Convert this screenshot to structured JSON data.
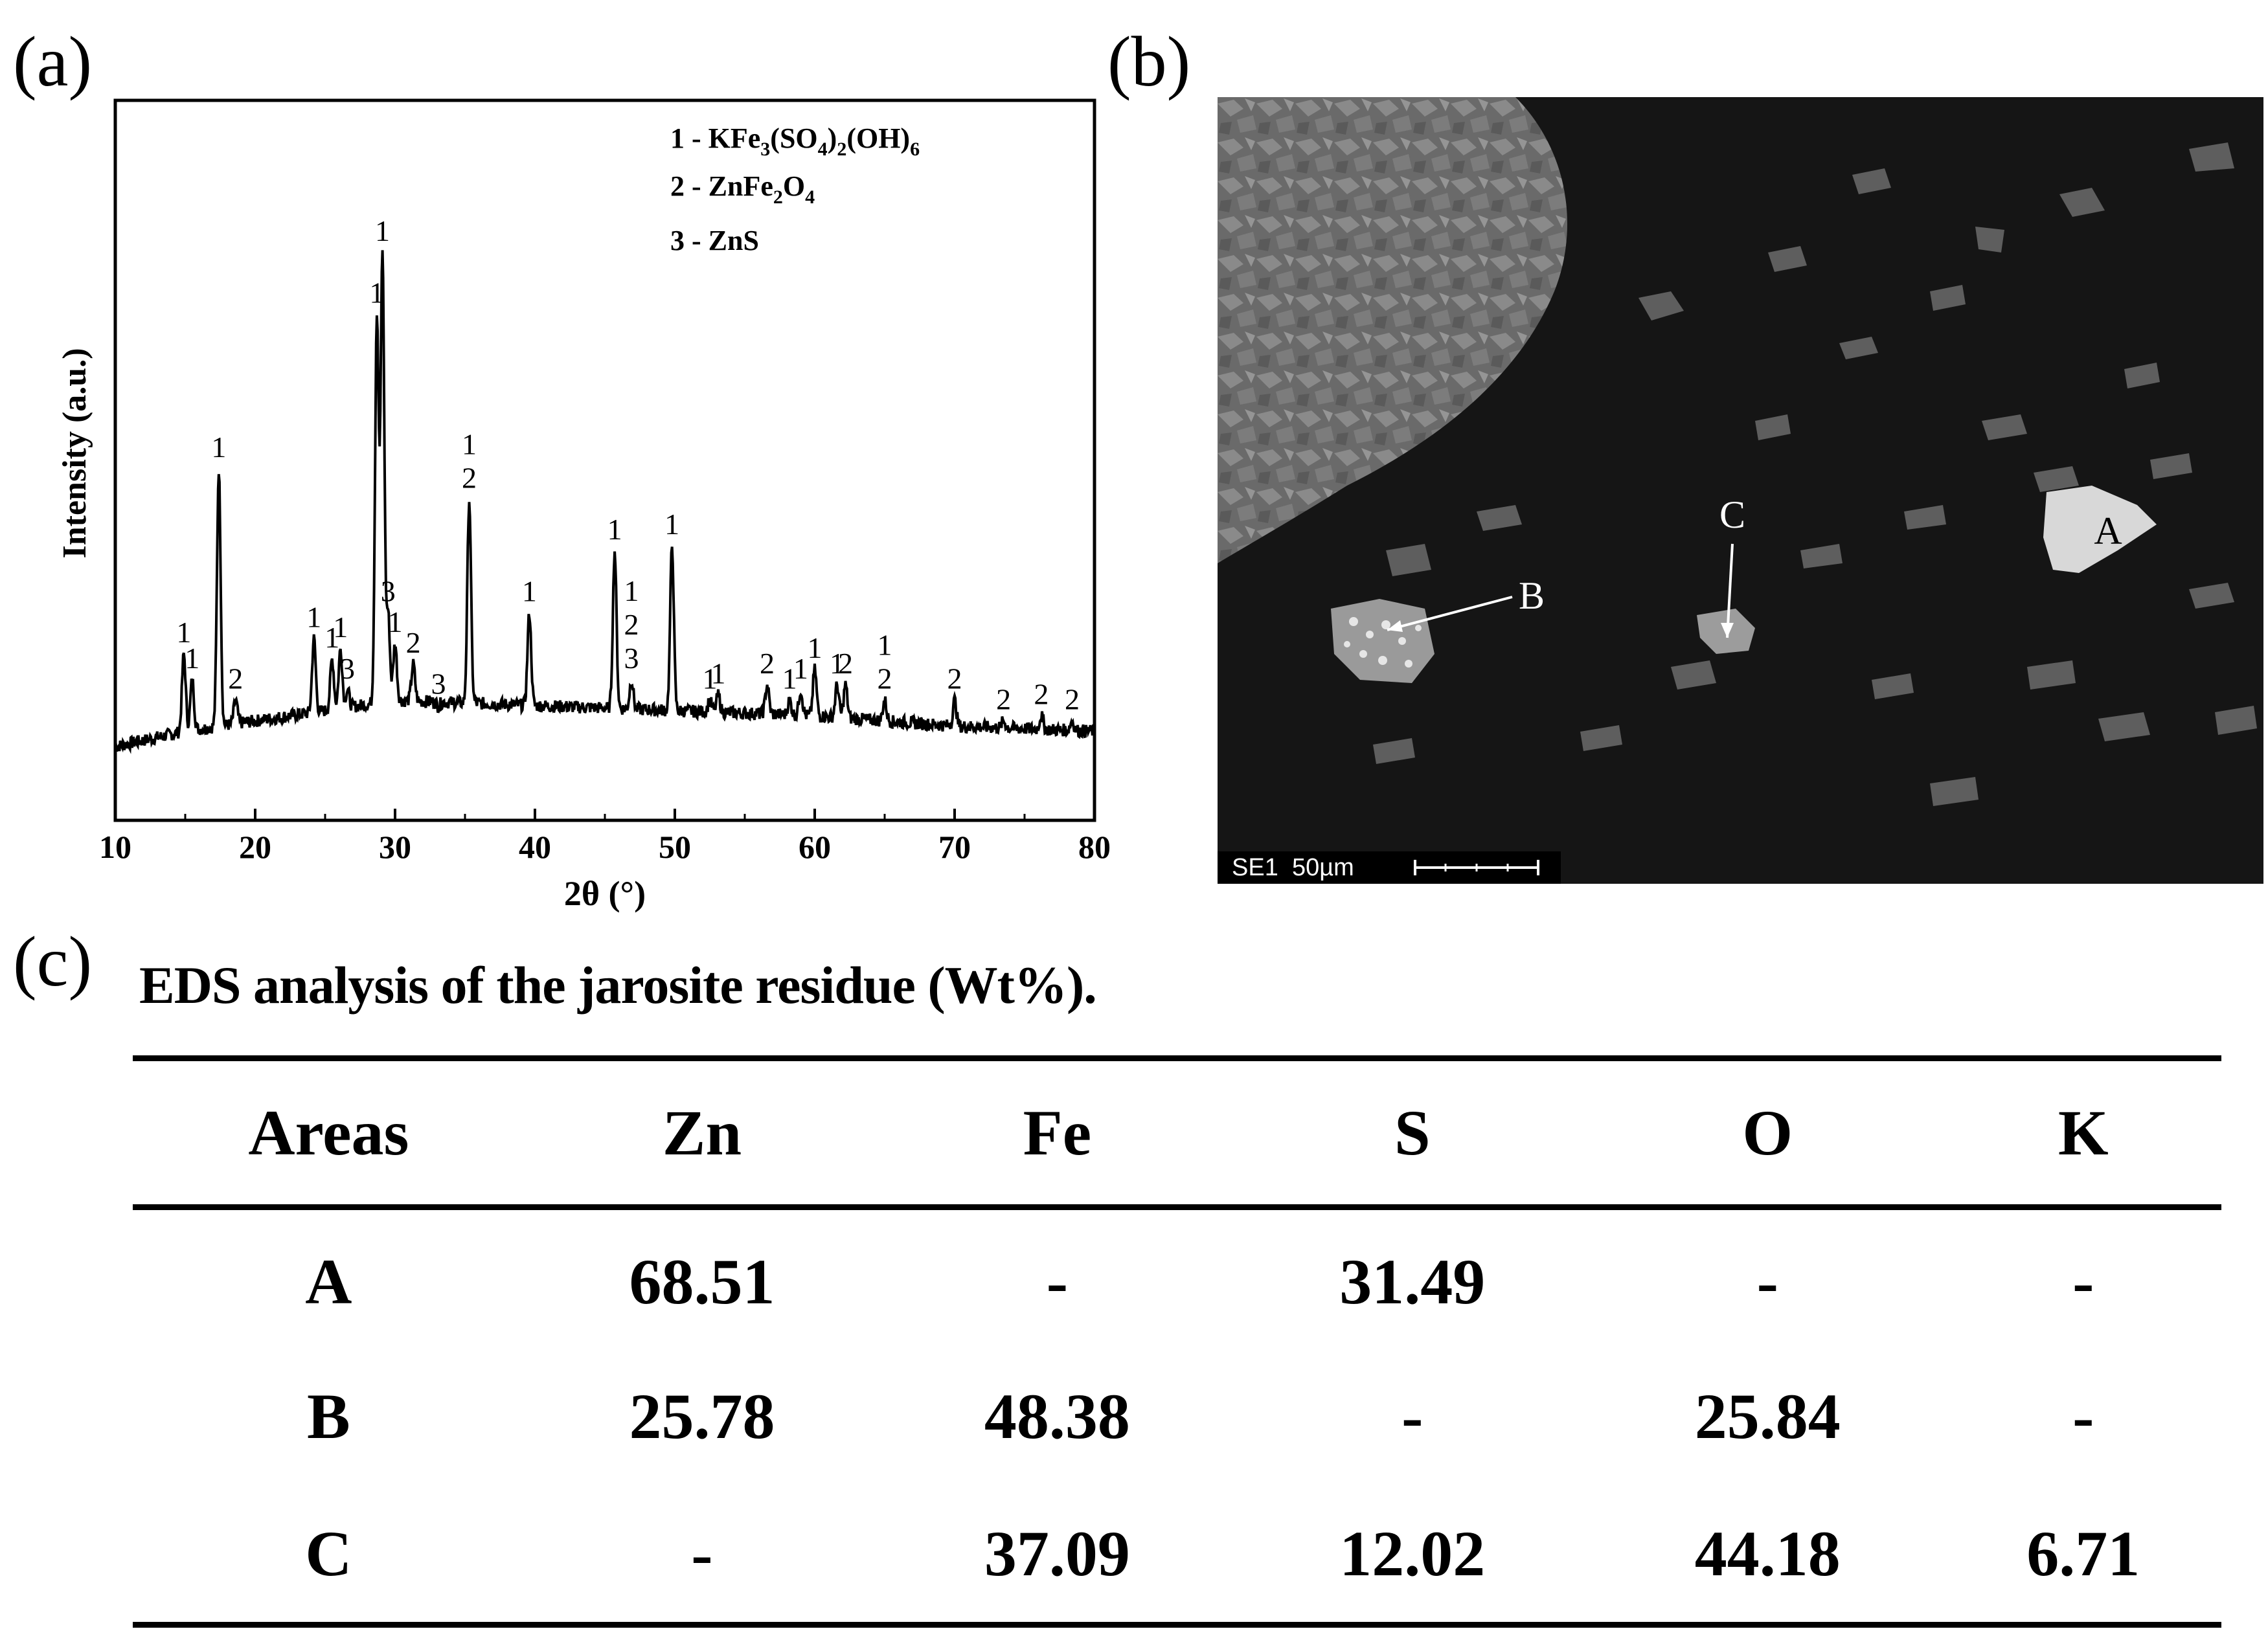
{
  "panels": {
    "a": "(a)",
    "b": "(b)",
    "c": "(c)"
  },
  "chart_data": {
    "type": "line",
    "xlabel": "2θ (°)",
    "ylabel": "Intensity (a.u.)",
    "xlim": [
      10,
      80
    ],
    "xticks": [
      10,
      20,
      30,
      40,
      50,
      60,
      70,
      80
    ],
    "y_ticks_shown": false,
    "legend": [
      {
        "marker": "1",
        "text": "1 - KFe3(SO4)2(OH)6"
      },
      {
        "marker": "2",
        "text": "2 - ZnFe2O4"
      },
      {
        "marker": "3",
        "text": "3 - ZnS"
      }
    ],
    "baseline": [
      [
        10,
        0.04
      ],
      [
        15,
        0.07
      ],
      [
        20,
        0.09
      ],
      [
        25,
        0.11
      ],
      [
        30,
        0.13
      ],
      [
        40,
        0.12
      ],
      [
        50,
        0.11
      ],
      [
        60,
        0.1
      ],
      [
        70,
        0.08
      ],
      [
        80,
        0.07
      ]
    ],
    "peaks": [
      {
        "x": 14.9,
        "y": 0.22,
        "labels": [
          "1"
        ]
      },
      {
        "x": 15.5,
        "y": 0.17,
        "labels": [
          "1"
        ]
      },
      {
        "x": 17.4,
        "y": 0.58,
        "labels": [
          "1"
        ]
      },
      {
        "x": 18.6,
        "y": 0.13,
        "labels": [
          "2"
        ]
      },
      {
        "x": 24.2,
        "y": 0.25,
        "labels": [
          "1"
        ]
      },
      {
        "x": 25.5,
        "y": 0.21,
        "labels": [
          "1"
        ]
      },
      {
        "x": 26.1,
        "y": 0.23,
        "labels": [
          "1"
        ]
      },
      {
        "x": 26.6,
        "y": 0.15,
        "labels": [
          "3"
        ]
      },
      {
        "x": 28.7,
        "y": 0.88,
        "labels": [
          "1"
        ]
      },
      {
        "x": 29.1,
        "y": 1.0,
        "labels": [
          "1"
        ]
      },
      {
        "x": 29.5,
        "y": 0.3,
        "labels": [
          "3"
        ]
      },
      {
        "x": 30.0,
        "y": 0.24,
        "labels": [
          "1"
        ]
      },
      {
        "x": 31.3,
        "y": 0.2,
        "labels": [
          "2"
        ]
      },
      {
        "x": 33.1,
        "y": 0.12,
        "labels": [
          "3"
        ]
      },
      {
        "x": 35.3,
        "y": 0.52,
        "labels": [
          "1",
          "2"
        ]
      },
      {
        "x": 39.6,
        "y": 0.3,
        "labels": [
          "1"
        ]
      },
      {
        "x": 45.7,
        "y": 0.42,
        "labels": [
          "1"
        ]
      },
      {
        "x": 46.9,
        "y": 0.17,
        "labels": [
          "1",
          "2",
          "3"
        ]
      },
      {
        "x": 49.8,
        "y": 0.43,
        "labels": [
          "1"
        ]
      },
      {
        "x": 52.5,
        "y": 0.13,
        "labels": [
          "1"
        ]
      },
      {
        "x": 53.1,
        "y": 0.14,
        "labels": [
          "1"
        ]
      },
      {
        "x": 56.6,
        "y": 0.16,
        "labels": [
          "2"
        ]
      },
      {
        "x": 58.2,
        "y": 0.13,
        "labels": [
          "1"
        ]
      },
      {
        "x": 59.0,
        "y": 0.15,
        "labels": [
          "1"
        ]
      },
      {
        "x": 60.0,
        "y": 0.19,
        "labels": [
          "1"
        ]
      },
      {
        "x": 61.6,
        "y": 0.16,
        "labels": [
          "1"
        ]
      },
      {
        "x": 62.2,
        "y": 0.16,
        "labels": [
          "2"
        ]
      },
      {
        "x": 65.0,
        "y": 0.13,
        "labels": [
          "1",
          "2"
        ]
      },
      {
        "x": 70.0,
        "y": 0.13,
        "labels": [
          "2"
        ]
      },
      {
        "x": 73.5,
        "y": 0.09,
        "labels": [
          "2"
        ]
      },
      {
        "x": 76.2,
        "y": 0.1,
        "labels": [
          "2"
        ]
      },
      {
        "x": 78.4,
        "y": 0.09,
        "labels": [
          "2"
        ]
      }
    ]
  },
  "sem": {
    "labels": {
      "a": "A",
      "b": "B",
      "c": "C"
    },
    "info_bar": "SE1  50µm"
  },
  "table": {
    "title": "EDS analysis of the jarosite residue (Wt%).",
    "headers": [
      "Areas",
      "Zn",
      "Fe",
      "S",
      "O",
      "K"
    ],
    "rows": [
      [
        "A",
        "68.51",
        "-",
        "31.49",
        "-",
        "-"
      ],
      [
        "B",
        "25.78",
        "48.38",
        "-",
        "25.84",
        "-"
      ],
      [
        "C",
        "-",
        "37.09",
        "12.02",
        "44.18",
        "6.71"
      ]
    ]
  }
}
